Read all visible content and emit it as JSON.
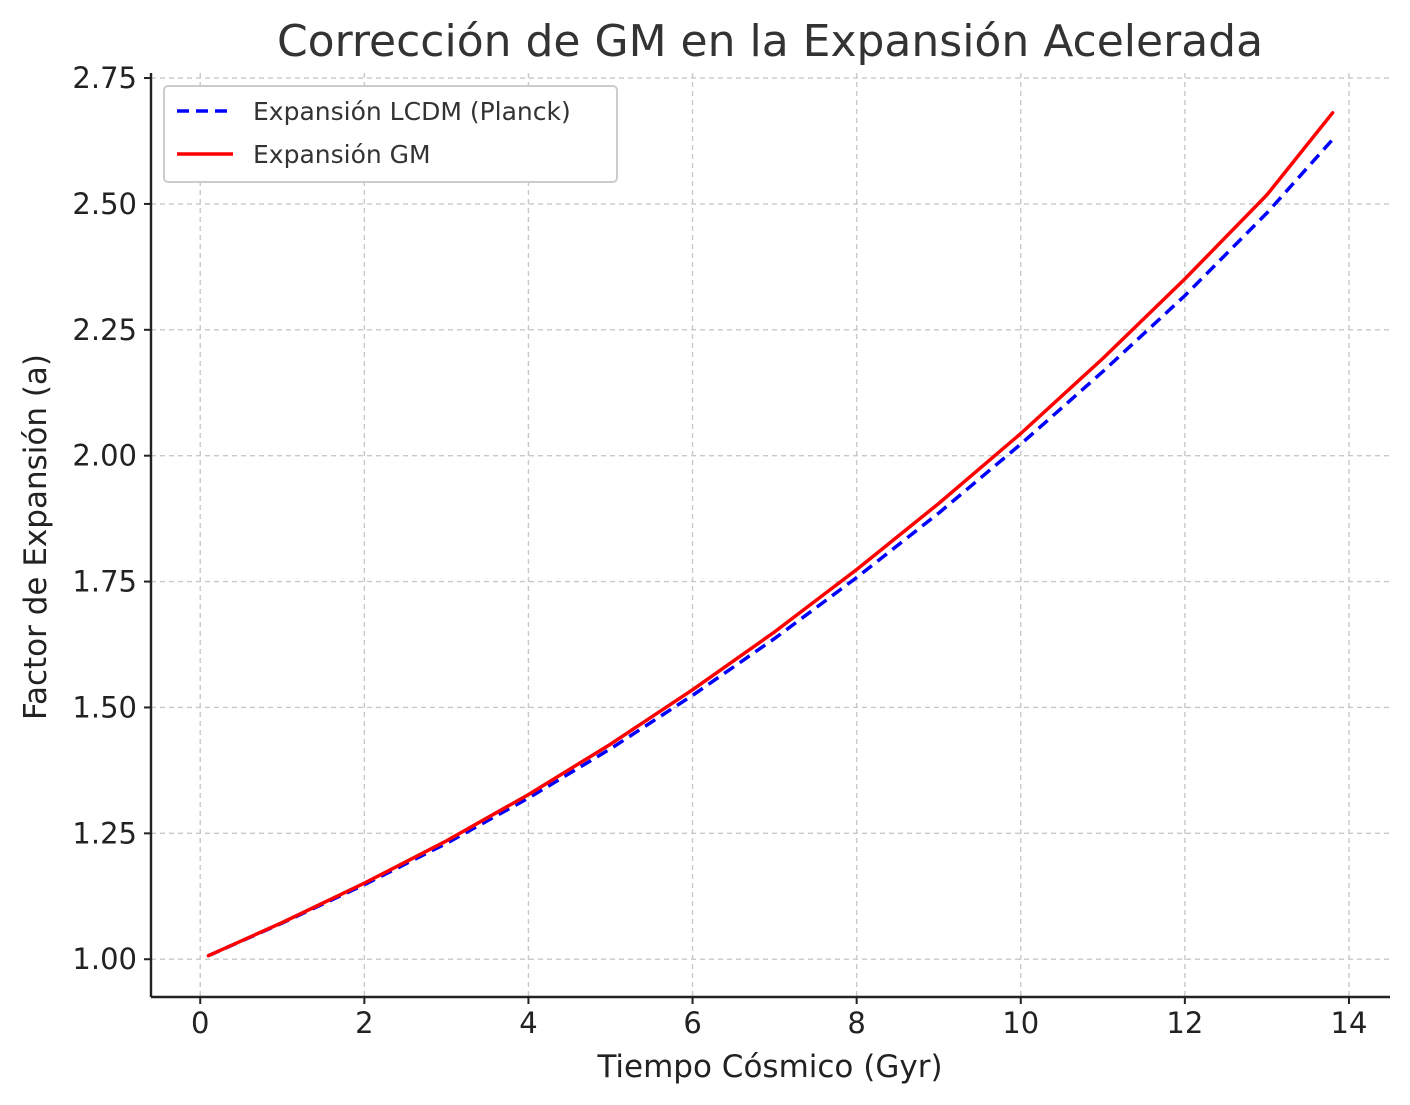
{
  "chart_data": {
    "type": "line",
    "title": "Corrección de GM en la Expansión Acelerada",
    "xlabel": "Tiempo Cósmico (Gyr)",
    "ylabel": "Factor de Expansión (a)",
    "xlim": [
      -0.6,
      14.5
    ],
    "ylim": [
      0.925,
      2.76
    ],
    "xticks": [
      0,
      2,
      4,
      6,
      8,
      10,
      12,
      14
    ],
    "xtick_labels": [
      "0",
      "2",
      "4",
      "6",
      "8",
      "10",
      "12",
      "14"
    ],
    "yticks": [
      1.0,
      1.25,
      1.5,
      1.75,
      2.0,
      2.25,
      2.5,
      2.75
    ],
    "ytick_labels": [
      "1.00",
      "1.25",
      "1.50",
      "1.75",
      "2.00",
      "2.25",
      "2.50",
      "2.75"
    ],
    "grid": true,
    "legend_position": "top-left",
    "x": [
      0.1,
      1,
      2,
      3,
      4,
      5,
      6,
      7,
      8,
      9,
      10,
      11,
      12,
      13,
      13.8
    ],
    "series": [
      {
        "name": "Expansión LCDM (Planck)",
        "color": "#0000ff",
        "style": "dashed",
        "values": [
          1.007,
          1.072,
          1.148,
          1.23,
          1.32,
          1.418,
          1.524,
          1.637,
          1.758,
          1.886,
          2.023,
          2.167,
          2.318,
          2.482,
          2.628
        ]
      },
      {
        "name": "Expansión GM",
        "color": "#ff0000",
        "style": "solid",
        "values": [
          1.007,
          1.073,
          1.151,
          1.235,
          1.327,
          1.427,
          1.535,
          1.65,
          1.774,
          1.905,
          2.044,
          2.193,
          2.351,
          2.518,
          2.681
        ]
      }
    ]
  }
}
